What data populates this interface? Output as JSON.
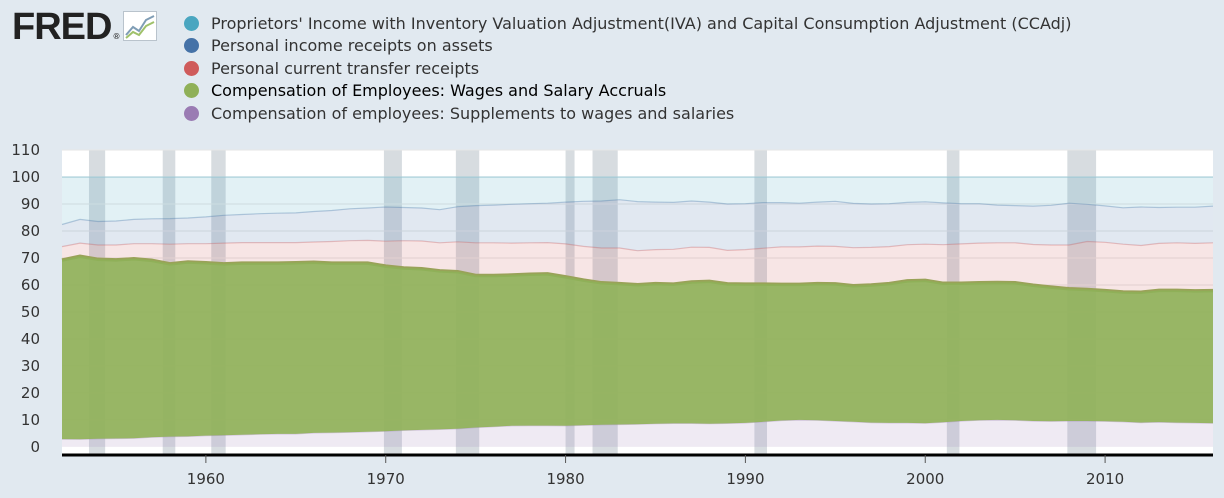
{
  "logo": {
    "text": "FRED",
    "reg_mark": "®",
    "icon": "line-chart-icon"
  },
  "chart_data": {
    "type": "area",
    "stacked": true,
    "percent_of_total": true,
    "highlighted_series": "Compensation of Employees: Wages and Salary Accruals",
    "x": [
      1952,
      1953,
      1954,
      1955,
      1956,
      1957,
      1958,
      1959,
      1960,
      1961,
      1962,
      1963,
      1964,
      1965,
      1966,
      1967,
      1968,
      1969,
      1970,
      1971,
      1972,
      1973,
      1974,
      1975,
      1976,
      1977,
      1978,
      1979,
      1980,
      1981,
      1982,
      1983,
      1984,
      1985,
      1986,
      1987,
      1988,
      1989,
      1990,
      1991,
      1992,
      1993,
      1994,
      1995,
      1996,
      1997,
      1998,
      1999,
      2000,
      2001,
      2002,
      2003,
      2004,
      2005,
      2006,
      2007,
      2008,
      2009,
      2010,
      2011,
      2012,
      2013,
      2014,
      2015,
      2016
    ],
    "series": [
      {
        "name": "Compensation of employees: Supplements to wages and salaries",
        "color": "#9a7bb3",
        "values": [
          2.9,
          2.8,
          3.0,
          3.1,
          3.2,
          3.6,
          3.8,
          3.9,
          4.2,
          4.3,
          4.5,
          4.7,
          4.8,
          4.8,
          5.2,
          5.3,
          5.4,
          5.6,
          5.8,
          6.1,
          6.3,
          6.5,
          6.7,
          7.2,
          7.5,
          7.8,
          7.9,
          7.9,
          7.8,
          8.0,
          8.2,
          8.3,
          8.4,
          8.6,
          8.7,
          8.7,
          8.6,
          8.7,
          8.9,
          9.3,
          9.8,
          10.0,
          9.9,
          9.6,
          9.3,
          9.0,
          8.9,
          8.9,
          8.8,
          9.1,
          9.6,
          9.9,
          10.0,
          9.9,
          9.6,
          9.5,
          9.6,
          9.6,
          9.5,
          9.3,
          9.0,
          9.2,
          9.0,
          8.9,
          8.8
        ]
      },
      {
        "name": "Compensation of Employees: Wages and Salary Accruals",
        "color": "#8fb058",
        "values": [
          66.3,
          67.8,
          66.5,
          66.2,
          66.5,
          65.5,
          64.0,
          64.6,
          64.0,
          63.5,
          63.6,
          63.4,
          63.3,
          63.4,
          63.2,
          62.8,
          62.7,
          62.5,
          61.2,
          60.2,
          59.7,
          58.7,
          58.2,
          56.3,
          56.0,
          55.9,
          56.1,
          56.2,
          55.2,
          53.8,
          52.6,
          52.2,
          51.7,
          51.9,
          51.6,
          52.4,
          52.7,
          51.7,
          51.4,
          51.0,
          50.4,
          50.2,
          50.6,
          50.8,
          50.4,
          51.0,
          51.6,
          52.6,
          52.9,
          51.5,
          51.0,
          50.9,
          50.9,
          50.9,
          50.3,
          49.7,
          49.0,
          48.7,
          48.4,
          48.1,
          48.3,
          48.8,
          49.0,
          48.9,
          49.1
        ]
      },
      {
        "name": "Personal current transfer receipts",
        "color": "#cf5b5b",
        "values": [
          5.0,
          4.9,
          5.3,
          5.5,
          5.6,
          6.2,
          7.3,
          6.8,
          7.1,
          7.7,
          7.6,
          7.6,
          7.6,
          7.5,
          7.5,
          8.0,
          8.3,
          8.4,
          9.2,
          10.1,
          10.3,
          10.4,
          11.1,
          12.1,
          12.1,
          11.8,
          11.6,
          11.6,
          12.2,
          12.5,
          12.9,
          13.2,
          12.6,
          12.6,
          12.9,
          12.9,
          12.6,
          12.4,
          12.8,
          13.3,
          13.9,
          13.9,
          13.9,
          13.9,
          14.1,
          13.9,
          13.7,
          13.4,
          13.4,
          14.3,
          14.6,
          14.7,
          14.7,
          14.8,
          15.1,
          15.6,
          16.2,
          17.8,
          17.9,
          17.7,
          17.3,
          17.4,
          17.6,
          17.6,
          17.7
        ]
      },
      {
        "name": "Personal income receipts on assets",
        "color": "#4572a7",
        "values": [
          8.2,
          8.8,
          8.7,
          8.9,
          9.0,
          9.2,
          9.5,
          9.5,
          9.9,
          10.3,
          10.4,
          10.7,
          10.9,
          11.0,
          11.3,
          11.5,
          11.8,
          12.0,
          12.7,
          12.3,
          12.2,
          12.3,
          13.0,
          13.8,
          14.0,
          14.4,
          14.5,
          14.6,
          15.5,
          16.7,
          17.4,
          17.9,
          18.2,
          17.6,
          17.4,
          17.1,
          16.8,
          17.2,
          17.0,
          16.9,
          16.4,
          16.2,
          16.3,
          16.7,
          16.4,
          16.1,
          15.9,
          15.7,
          15.7,
          15.5,
          14.9,
          14.6,
          14.0,
          13.8,
          14.2,
          14.7,
          15.5,
          13.8,
          13.5,
          13.5,
          14.3,
          13.3,
          13.2,
          13.4,
          13.6
        ]
      },
      {
        "name": "Proprietors' Income with Inventory Valuation Adjustment(IVA) and Capital Consumption Adjustment (CCAdj)",
        "color": "#4aa6c0",
        "values": [
          17.6,
          15.7,
          16.5,
          16.3,
          15.7,
          15.5,
          15.4,
          15.2,
          14.8,
          14.2,
          13.9,
          13.6,
          13.4,
          13.3,
          12.8,
          12.4,
          11.8,
          11.5,
          11.1,
          11.3,
          11.5,
          12.1,
          11.0,
          10.6,
          10.4,
          10.1,
          9.9,
          9.7,
          9.3,
          9.0,
          8.9,
          8.4,
          9.1,
          9.3,
          9.4,
          8.9,
          9.3,
          10.0,
          9.9,
          9.5,
          9.5,
          9.7,
          9.3,
          9.0,
          9.8,
          10.0,
          9.9,
          9.4,
          9.2,
          9.6,
          9.9,
          9.9,
          10.4,
          10.6,
          10.8,
          10.5,
          9.7,
          10.1,
          10.7,
          11.4,
          11.1,
          11.3,
          11.2,
          11.2,
          10.8
        ]
      }
    ],
    "recessions": [
      [
        1953.5,
        1954.4
      ],
      [
        1957.6,
        1958.3
      ],
      [
        1960.3,
        1961.1
      ],
      [
        1969.9,
        1970.9
      ],
      [
        1973.9,
        1975.2
      ],
      [
        1980.0,
        1980.5
      ],
      [
        1981.5,
        1982.9
      ],
      [
        1990.5,
        1991.2
      ],
      [
        2001.2,
        2001.9
      ],
      [
        2007.9,
        2009.5
      ]
    ],
    "xlim": [
      1952,
      2016
    ],
    "ylim": [
      -3,
      110
    ],
    "yticks": [
      0,
      10,
      20,
      30,
      40,
      50,
      60,
      70,
      80,
      90,
      100,
      110
    ],
    "xticks": [
      1960,
      1970,
      1980,
      1990,
      2000,
      2010
    ],
    "title": "",
    "xlabel": "",
    "ylabel": ""
  },
  "legend": [
    {
      "label": "Proprietors' Income with Inventory Valuation Adjustment(IVA) and Capital Consumption Adjustment (CCAdj)",
      "color": "#4aa6c0",
      "active": false
    },
    {
      "label": "Personal income receipts on assets",
      "color": "#4572a7",
      "active": false
    },
    {
      "label": "Personal current transfer receipts",
      "color": "#cf5b5b",
      "active": false
    },
    {
      "label": "Compensation of Employees: Wages and Salary Accruals",
      "color": "#8fb058",
      "active": true
    },
    {
      "label": "Compensation of employees: Supplements to wages and salaries",
      "color": "#9a7bb3",
      "active": false
    }
  ]
}
